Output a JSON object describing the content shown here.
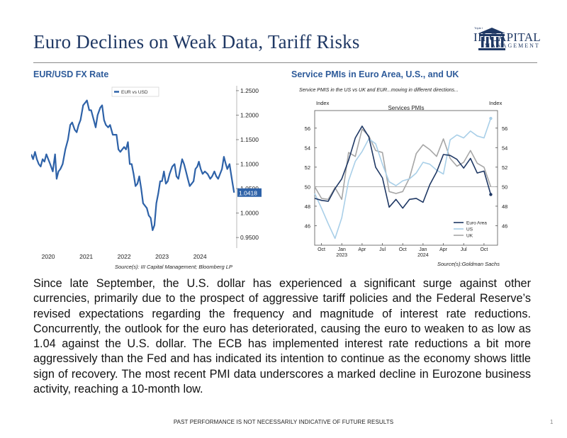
{
  "header": {
    "title": "Euro Declines on Weak Data, Tariff Risks",
    "logo_tm": "Triple I",
    "logo_line1": "III CAPITAL",
    "logo_line2": "MANAGEMENT"
  },
  "colors": {
    "title": "#1f3864",
    "chart_title": "#2e5b9a",
    "eurusd_line": "#2e62a8",
    "euro_area": "#1f3864",
    "us": "#a9cfe8",
    "uk": "#a6a6a6"
  },
  "chart_data": [
    {
      "type": "line",
      "title": "EUR/USD FX Rate",
      "legend": [
        "EUR vs USD"
      ],
      "legend_position": "top-left",
      "xlim": [
        2019.55,
        2024.95
      ],
      "ylim": [
        0.93,
        1.26
      ],
      "x_ticks": [
        2020,
        2021,
        2022,
        2023,
        2024
      ],
      "x_tick_labels": [
        "2020",
        "2021",
        "2022",
        "2023",
        "2024"
      ],
      "y_ticks": [
        0.95,
        1.0,
        1.05,
        1.1,
        1.15,
        1.2,
        1.25
      ],
      "y_tick_labels": [
        "0.9500",
        "1.0000",
        "1.0500",
        "1.1000",
        "1.1500",
        "1.2000",
        "1.2500"
      ],
      "last_value_label": "1.0418",
      "series": [
        {
          "name": "EUR vs USD",
          "points": [
            [
              2019.55,
              1.12
            ],
            [
              2019.6,
              1.11
            ],
            [
              2019.65,
              1.125
            ],
            [
              2019.7,
              1.11
            ],
            [
              2019.75,
              1.1
            ],
            [
              2019.8,
              1.095
            ],
            [
              2019.85,
              1.11
            ],
            [
              2019.9,
              1.105
            ],
            [
              2019.95,
              1.12
            ],
            [
              2020.0,
              1.11
            ],
            [
              2020.05,
              1.1
            ],
            [
              2020.12,
              1.085
            ],
            [
              2020.18,
              1.12
            ],
            [
              2020.22,
              1.07
            ],
            [
              2020.27,
              1.085
            ],
            [
              2020.32,
              1.09
            ],
            [
              2020.38,
              1.1
            ],
            [
              2020.45,
              1.13
            ],
            [
              2020.52,
              1.15
            ],
            [
              2020.58,
              1.18
            ],
            [
              2020.63,
              1.185
            ],
            [
              2020.7,
              1.17
            ],
            [
              2020.75,
              1.165
            ],
            [
              2020.8,
              1.18
            ],
            [
              2020.85,
              1.19
            ],
            [
              2020.92,
              1.22
            ],
            [
              2020.97,
              1.225
            ],
            [
              2021.02,
              1.23
            ],
            [
              2021.08,
              1.21
            ],
            [
              2021.13,
              1.21
            ],
            [
              2021.2,
              1.19
            ],
            [
              2021.25,
              1.175
            ],
            [
              2021.3,
              1.2
            ],
            [
              2021.37,
              1.215
            ],
            [
              2021.42,
              1.22
            ],
            [
              2021.47,
              1.19
            ],
            [
              2021.52,
              1.18
            ],
            [
              2021.58,
              1.175
            ],
            [
              2021.63,
              1.18
            ],
            [
              2021.7,
              1.16
            ],
            [
              2021.75,
              1.16
            ],
            [
              2021.8,
              1.16
            ],
            [
              2021.85,
              1.13
            ],
            [
              2021.9,
              1.125
            ],
            [
              2021.95,
              1.13
            ],
            [
              2022.0,
              1.135
            ],
            [
              2022.05,
              1.13
            ],
            [
              2022.1,
              1.145
            ],
            [
              2022.15,
              1.1
            ],
            [
              2022.2,
              1.1
            ],
            [
              2022.25,
              1.08
            ],
            [
              2022.3,
              1.055
            ],
            [
              2022.35,
              1.06
            ],
            [
              2022.4,
              1.075
            ],
            [
              2022.45,
              1.05
            ],
            [
              2022.5,
              1.02
            ],
            [
              2022.55,
              1.015
            ],
            [
              2022.6,
              1.01
            ],
            [
              2022.65,
              0.995
            ],
            [
              2022.7,
              0.99
            ],
            [
              2022.75,
              0.965
            ],
            [
              2022.8,
              0.975
            ],
            [
              2022.85,
              1.02
            ],
            [
              2022.9,
              1.04
            ],
            [
              2022.95,
              1.065
            ],
            [
              2023.0,
              1.065
            ],
            [
              2023.05,
              1.085
            ],
            [
              2023.1,
              1.06
            ],
            [
              2023.15,
              1.065
            ],
            [
              2023.2,
              1.08
            ],
            [
              2023.27,
              1.095
            ],
            [
              2023.33,
              1.1
            ],
            [
              2023.38,
              1.075
            ],
            [
              2023.43,
              1.07
            ],
            [
              2023.48,
              1.09
            ],
            [
              2023.53,
              1.11
            ],
            [
              2023.58,
              1.1
            ],
            [
              2023.63,
              1.085
            ],
            [
              2023.68,
              1.07
            ],
            [
              2023.73,
              1.055
            ],
            [
              2023.78,
              1.06
            ],
            [
              2023.83,
              1.065
            ],
            [
              2023.88,
              1.09
            ],
            [
              2023.93,
              1.095
            ],
            [
              2023.97,
              1.105
            ],
            [
              2024.02,
              1.09
            ],
            [
              2024.07,
              1.08
            ],
            [
              2024.13,
              1.085
            ],
            [
              2024.2,
              1.08
            ],
            [
              2024.27,
              1.07
            ],
            [
              2024.32,
              1.075
            ],
            [
              2024.38,
              1.085
            ],
            [
              2024.43,
              1.075
            ],
            [
              2024.48,
              1.07
            ],
            [
              2024.53,
              1.08
            ],
            [
              2024.58,
              1.09
            ],
            [
              2024.63,
              1.115
            ],
            [
              2024.68,
              1.1
            ],
            [
              2024.72,
              1.09
            ],
            [
              2024.78,
              1.1
            ],
            [
              2024.82,
              1.08
            ],
            [
              2024.86,
              1.06
            ],
            [
              2024.9,
              1.0418
            ]
          ]
        }
      ],
      "source": "Source(s): III Capital Management; Bloomberg LP"
    },
    {
      "type": "line",
      "title": "Service PMIs in Euro Area, U.S., and UK",
      "subtitle": "Service PMIS in the US vs UK and EUR...moving in different directions...",
      "inner_title": "Services PMIs",
      "ylabel_left": "Index",
      "ylabel_right": "Index",
      "xlim": [
        0,
        27
      ],
      "ylim": [
        44,
        57.8
      ],
      "y_ticks": [
        46,
        48,
        50,
        52,
        54,
        56
      ],
      "y_tick_labels": [
        "46",
        "48",
        "50",
        "52",
        "54",
        "56"
      ],
      "reference_line": 50,
      "x_ticks": [
        {
          "x": 1,
          "label": "Oct"
        },
        {
          "x": 4,
          "label": "Jan",
          "sub": "2023"
        },
        {
          "x": 7,
          "label": "Apr"
        },
        {
          "x": 10,
          "label": "Jul"
        },
        {
          "x": 13,
          "label": "Oct"
        },
        {
          "x": 16,
          "label": "Jan",
          "sub": "2024"
        },
        {
          "x": 19,
          "label": "Apr"
        },
        {
          "x": 22,
          "label": "Jul"
        },
        {
          "x": 25,
          "label": "Oct"
        }
      ],
      "legend_position": "bottom-right",
      "series": [
        {
          "name": "Euro Area",
          "x": [
            0,
            1,
            2,
            3,
            4,
            5,
            6,
            7,
            8,
            9,
            10,
            11,
            12,
            13,
            14,
            15,
            16,
            17,
            18,
            19,
            20,
            21,
            22,
            23,
            24,
            25,
            26
          ],
          "values": [
            48.8,
            48.6,
            48.5,
            49.8,
            50.8,
            52.7,
            55.0,
            56.2,
            55.1,
            52.0,
            50.9,
            47.9,
            48.7,
            47.8,
            48.7,
            48.8,
            48.4,
            50.2,
            51.5,
            53.3,
            53.2,
            52.8,
            51.9,
            52.9,
            51.4,
            51.6,
            49.2
          ]
        },
        {
          "name": "US",
          "x": [
            0,
            1,
            2,
            3,
            4,
            5,
            6,
            7,
            8,
            9,
            10,
            11,
            12,
            13,
            14,
            15,
            16,
            17,
            18,
            19,
            20,
            21,
            22,
            23,
            24,
            25,
            26
          ],
          "values": [
            49.3,
            47.8,
            46.2,
            44.7,
            46.8,
            50.6,
            52.6,
            53.6,
            54.9,
            54.4,
            52.3,
            50.5,
            50.1,
            50.6,
            50.8,
            51.4,
            52.5,
            52.3,
            51.7,
            51.3,
            54.8,
            55.3,
            55.0,
            55.7,
            55.2,
            55.0,
            57.0
          ]
        },
        {
          "name": "UK",
          "x": [
            0,
            1,
            2,
            3,
            4,
            5,
            6,
            7,
            8,
            9,
            10,
            11,
            12,
            13,
            14,
            15,
            16,
            17,
            18,
            19,
            20,
            21,
            22,
            23,
            24,
            25,
            26
          ],
          "values": [
            50.0,
            48.8,
            48.7,
            49.9,
            48.7,
            53.5,
            53.1,
            55.9,
            55.2,
            53.7,
            53.5,
            49.5,
            49.3,
            49.5,
            50.9,
            53.4,
            54.3,
            53.8,
            53.1,
            54.9,
            52.9,
            52.1,
            52.5,
            53.7,
            52.4,
            52.0,
            50.0
          ]
        }
      ],
      "source": "Source(s):Goldman Sachs"
    }
  ],
  "body": {
    "paragraph": "Since late September, the U.S. dollar has experienced a significant surge against other currencies, primarily due to the prospect of aggressive tariff policies and the Federal Reserve’s revised expectations regarding the frequency and magnitude of interest rate reductions. Concurrently, the outlook for the euro has deteriorated, causing the euro to weaken to as low as 1.04 against the U.S. dollar. The ECB has implemented interest rate reductions a bit more aggressively than the Fed and has indicated its intention to continue as the economy shows little sign of recovery. The most recent PMI data underscores a marked decline in Eurozone business activity, reaching a 10-month low."
  },
  "footer": {
    "disclaimer": "PAST PERFORMANCE IS NOT NECESSARILY INDICATIVE OF FUTURE RESULTS",
    "page_number": "1"
  }
}
